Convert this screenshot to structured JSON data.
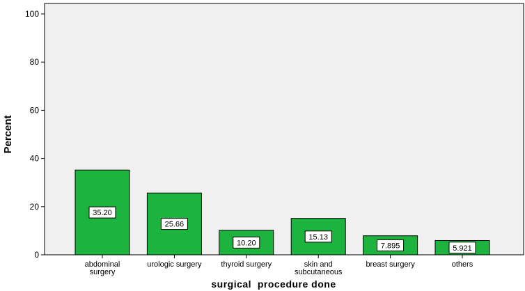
{
  "chart_data": {
    "type": "bar",
    "categories": [
      [
        "abdominal",
        "surgery"
      ],
      [
        "urologic surgery"
      ],
      [
        "thyroid surgery"
      ],
      [
        "skin and",
        "subcutaneous"
      ],
      [
        "breast surgery"
      ],
      [
        "others"
      ]
    ],
    "values": [
      35.2,
      25.66,
      10.2,
      15.13,
      7.895,
      5.921
    ],
    "data_labels": [
      "35.20",
      "25.66",
      "10.20",
      "15.13",
      "7.895",
      "5.921"
    ],
    "title": "",
    "xlabel": "surgical  procedure done",
    "ylabel": "Percent",
    "ylim": [
      0,
      100
    ],
    "yticks": [
      0,
      20,
      40,
      60,
      80,
      100
    ],
    "grid": false,
    "bar_color": "#1db33f",
    "plot_background": "#f0f0f0"
  }
}
